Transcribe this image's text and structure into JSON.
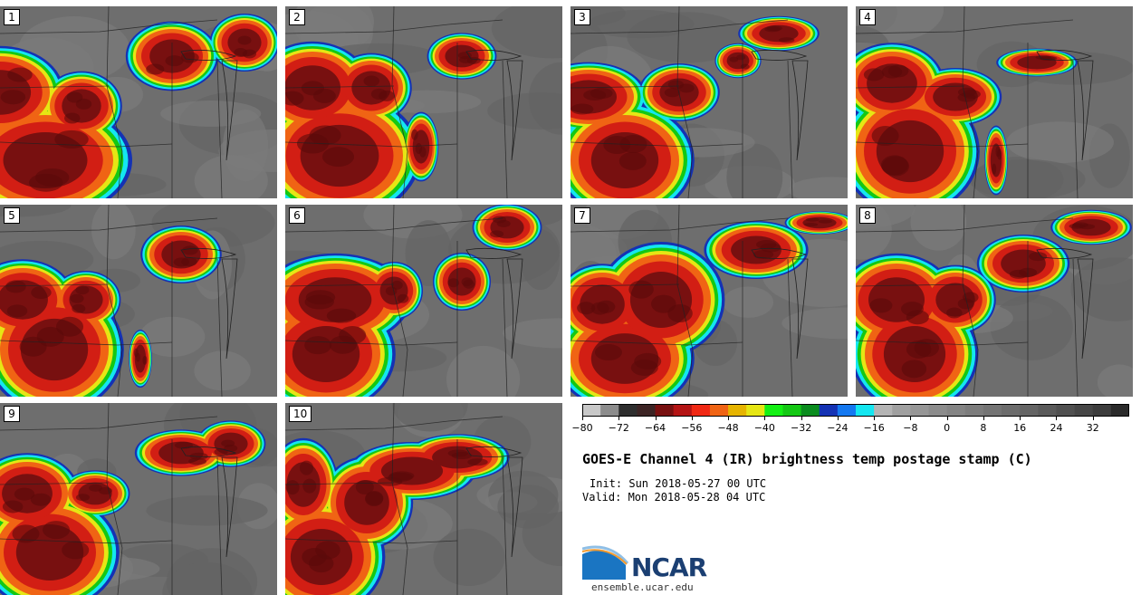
{
  "panels": [
    {
      "label": "1"
    },
    {
      "label": "2"
    },
    {
      "label": "3"
    },
    {
      "label": "4"
    },
    {
      "label": "5"
    },
    {
      "label": "6"
    },
    {
      "label": "7"
    },
    {
      "label": "8"
    },
    {
      "label": "9"
    },
    {
      "label": "10"
    }
  ],
  "colorbar": {
    "tick_labels": [
      "−80",
      "−72",
      "−64",
      "−56",
      "−48",
      "−40",
      "−32",
      "−24",
      "−16",
      "−8",
      "0",
      "8",
      "16",
      "24",
      "32"
    ],
    "colors": [
      "#c8c8c8",
      "#8c8c8c",
      "#2e2e2e",
      "#3c2424",
      "#781010",
      "#b41414",
      "#f02814",
      "#f06414",
      "#e6b400",
      "#e6e614",
      "#14f014",
      "#14c814",
      "#0a8c1e",
      "#1432b4",
      "#1478f0",
      "#14e6f0",
      "#b4b4b4",
      "#a0a0a0",
      "#969696",
      "#8c8c8c",
      "#848484",
      "#7c7c7c",
      "#747474",
      "#6c6c6c",
      "#646464",
      "#5a5a5a",
      "#505050",
      "#464646",
      "#3c3c3c",
      "#2a2a2a"
    ]
  },
  "title": "GOES-E Channel 4 (IR) brightness temp postage stamp (C)",
  "init": "Init: Sun 2018-05-27 00 UTC",
  "valid": "Valid: Mon 2018-05-28 04 UTC",
  "logo": {
    "text": "NCAR"
  },
  "site": "ensemble.ucar.edu"
}
